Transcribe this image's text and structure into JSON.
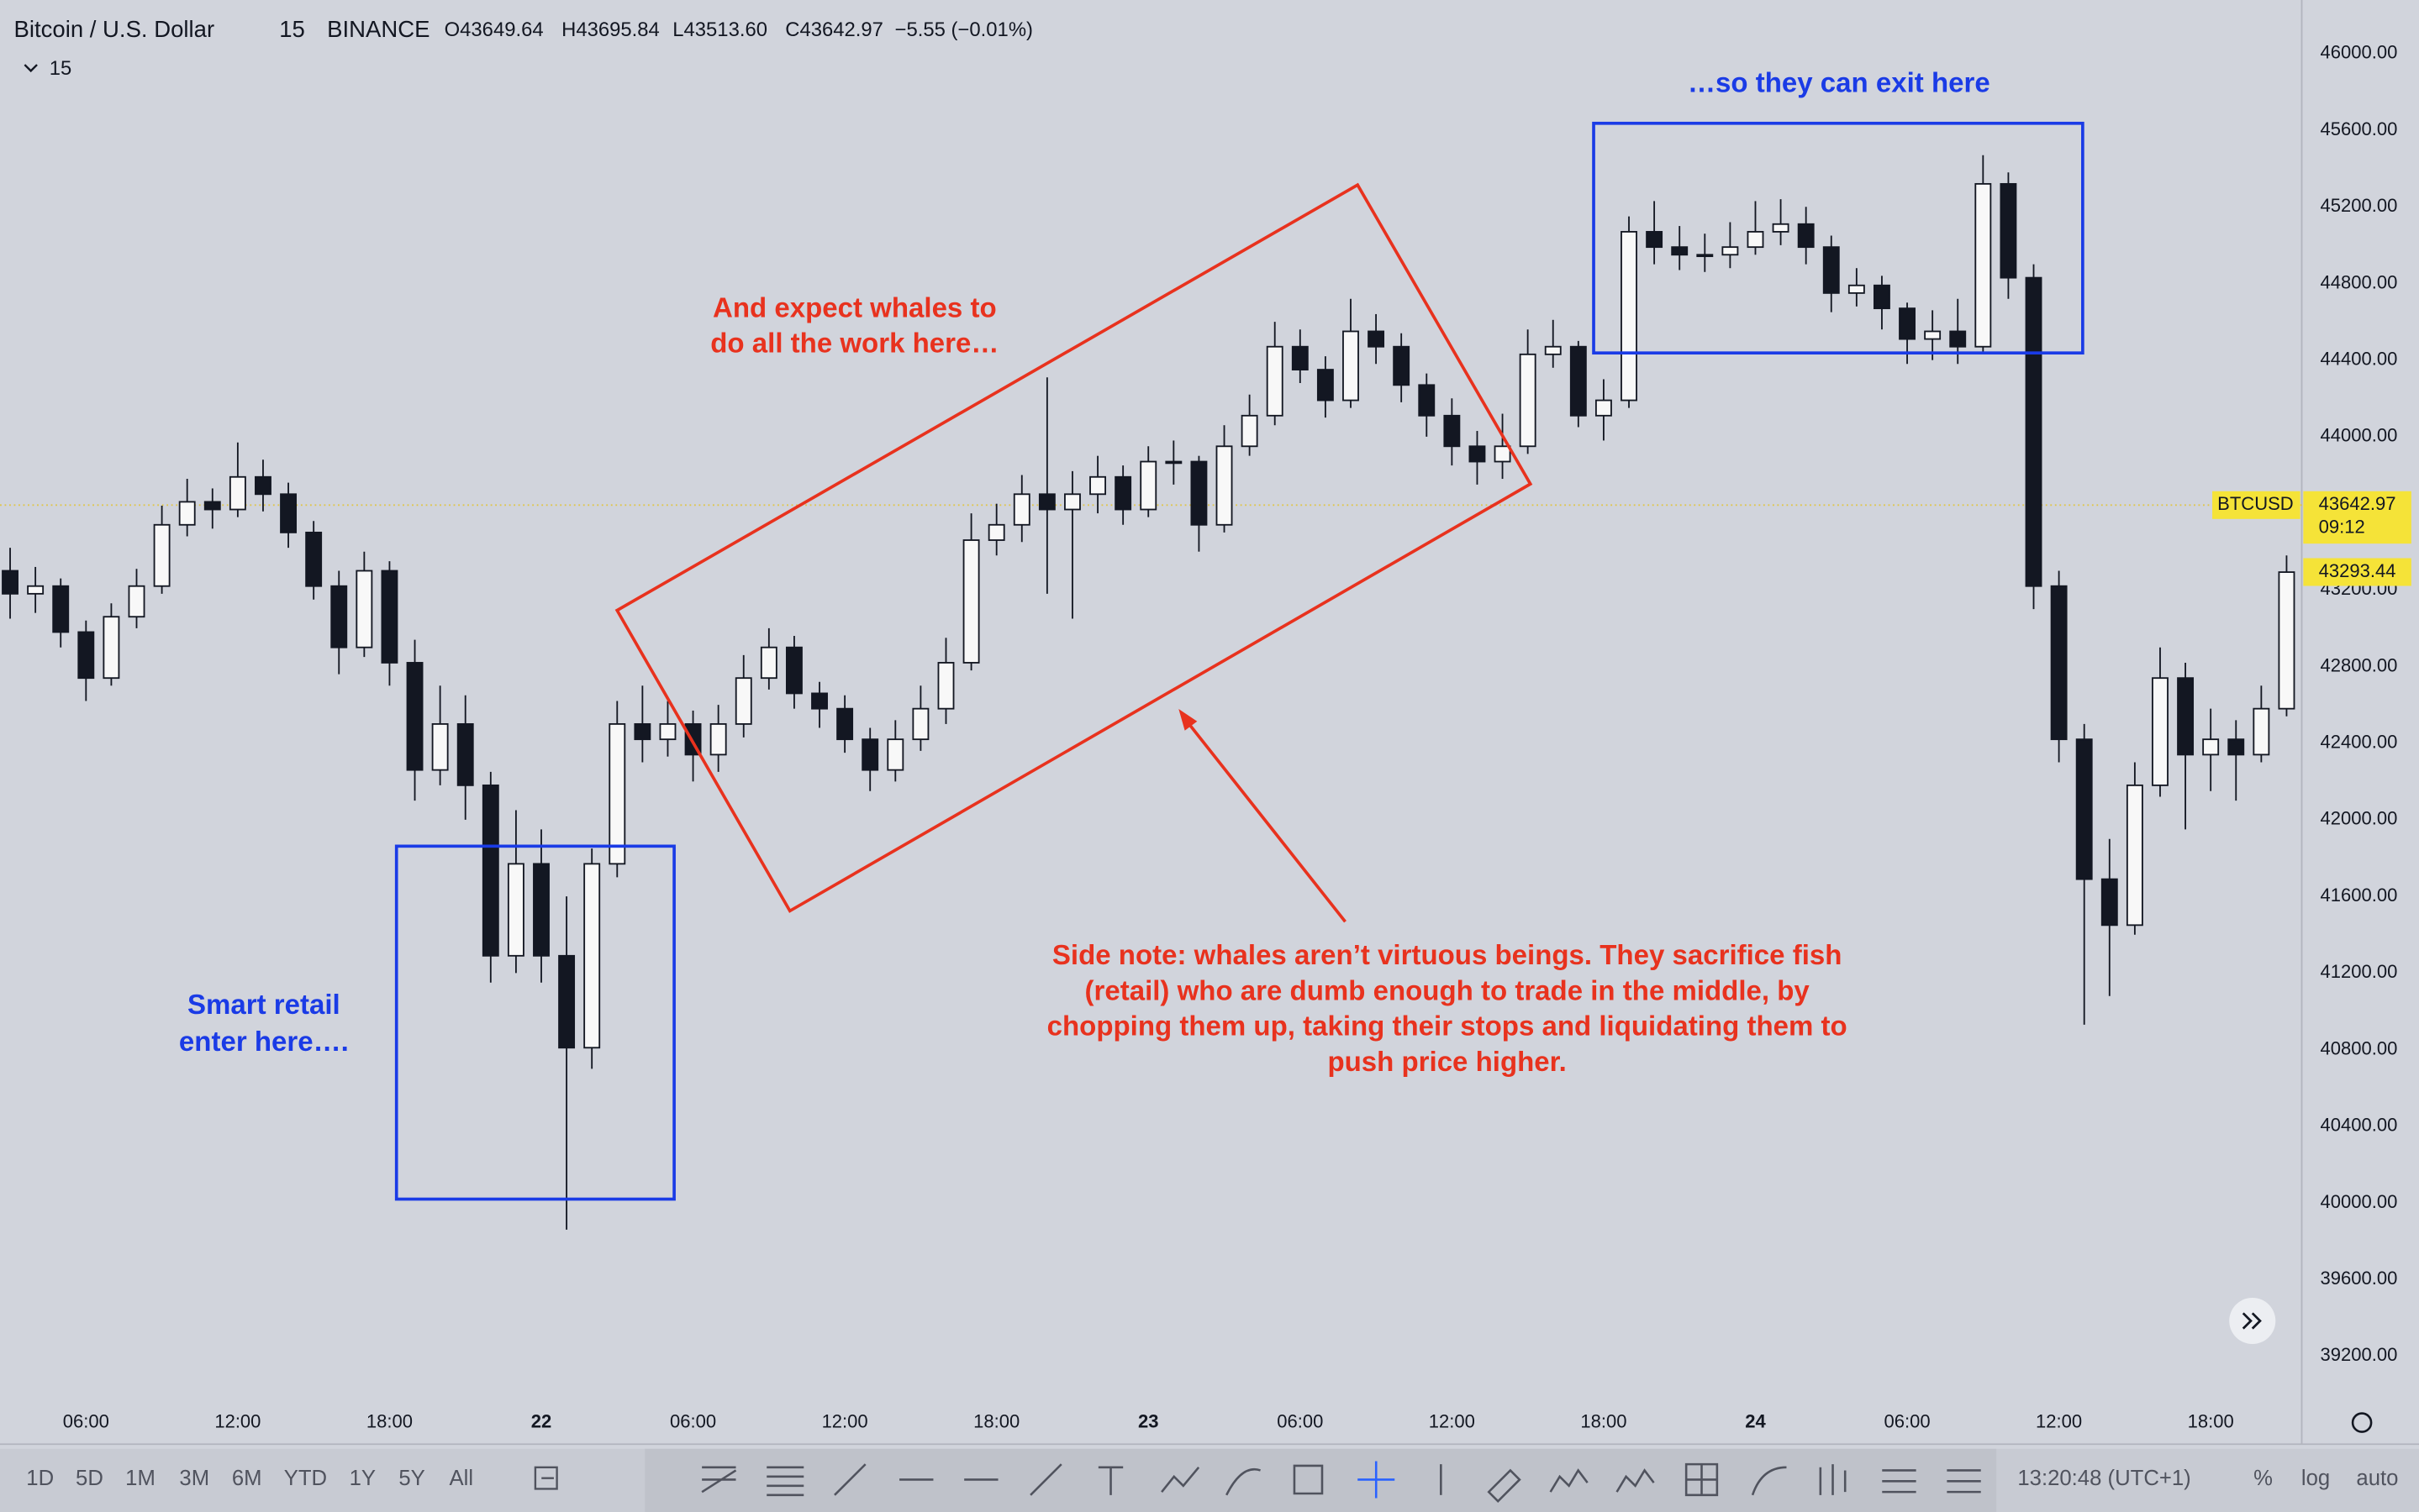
{
  "header": {
    "symbol": "Bitcoin / U.S. Dollar",
    "interval": "15",
    "exchange": "BINANCE",
    "open": "O43649.64",
    "high": "H43695.84",
    "low": "L43513.60",
    "close": "C43642.97",
    "change": "−5.55 (−0.01%)",
    "interval_menu": "15"
  },
  "chart_data": {
    "type": "candlestick",
    "xlim": [
      2.6,
      93.6
    ],
    "ylim": [
      38740,
      46280
    ],
    "xticks": [
      {
        "value": 6,
        "label": "06:00"
      },
      {
        "value": 12,
        "label": "12:00"
      },
      {
        "value": 18,
        "label": "18:00"
      },
      {
        "value": 24,
        "label": "22"
      },
      {
        "value": 30,
        "label": "06:00"
      },
      {
        "value": 36,
        "label": "12:00"
      },
      {
        "value": 42,
        "label": "18:00"
      },
      {
        "value": 48,
        "label": "23"
      },
      {
        "value": 54,
        "label": "06:00"
      },
      {
        "value": 60,
        "label": "12:00"
      },
      {
        "value": 66,
        "label": "18:00"
      },
      {
        "value": 72,
        "label": "24"
      },
      {
        "value": 78,
        "label": "06:00"
      },
      {
        "value": 84,
        "label": "12:00"
      },
      {
        "value": 90,
        "label": "18:00"
      }
    ],
    "yticks": [
      {
        "value": 39200,
        "label": "39200.00"
      },
      {
        "value": 39600,
        "label": "39600.00"
      },
      {
        "value": 40000,
        "label": "40000.00"
      },
      {
        "value": 40400,
        "label": "40400.00"
      },
      {
        "value": 40800,
        "label": "40800.00"
      },
      {
        "value": 41200,
        "label": "41200.00"
      },
      {
        "value": 41600,
        "label": "41600.00"
      },
      {
        "value": 42000,
        "label": "42000.00"
      },
      {
        "value": 42400,
        "label": "42400.00"
      },
      {
        "value": 42800,
        "label": "42800.00"
      },
      {
        "value": 43200,
        "label": "43200.00"
      },
      {
        "value": 43600,
        "label": "43600.00"
      },
      {
        "value": 44000,
        "label": "44000.00"
      },
      {
        "value": 44400,
        "label": "44400.00"
      },
      {
        "value": 44800,
        "label": "44800.00"
      },
      {
        "value": 45200,
        "label": "45200.00"
      },
      {
        "value": 45600,
        "label": "45600.00"
      },
      {
        "value": 46000,
        "label": "46000.00"
      }
    ],
    "color": "#131722",
    "series": [
      {
        "name": "BTCUSD",
        "x": [
          3,
          4,
          5,
          6,
          7,
          8,
          9,
          10,
          11,
          12,
          13,
          14,
          15,
          16,
          17,
          18,
          19,
          20,
          21,
          22,
          23,
          24,
          25,
          26,
          27,
          28,
          29,
          30,
          31,
          32,
          33,
          34,
          35,
          36,
          37,
          38,
          39,
          40,
          41,
          42,
          43,
          44,
          45,
          46,
          47,
          48,
          49,
          50,
          51,
          52,
          53,
          54,
          55,
          56,
          57,
          58,
          59,
          60,
          61,
          62,
          63,
          64,
          65,
          66,
          67,
          68,
          69,
          70,
          71,
          72,
          73,
          74,
          75,
          76,
          77,
          78,
          79,
          80,
          81,
          82,
          83,
          84,
          85,
          86,
          87,
          88,
          89,
          90,
          91,
          92,
          93
        ],
        "open": [
          43300,
          43180,
          43220,
          42980,
          42740,
          43060,
          43220,
          43540,
          43660,
          43620,
          43790,
          43700,
          43500,
          43220,
          42900,
          43300,
          42820,
          42260,
          42500,
          42180,
          41290,
          41770,
          41290,
          40810,
          41770,
          42500,
          42420,
          42500,
          42340,
          42500,
          42740,
          42900,
          42660,
          42580,
          42420,
          42260,
          42420,
          42580,
          42820,
          43460,
          43540,
          43700,
          43620,
          43700,
          43790,
          43620,
          43870,
          43870,
          43540,
          43950,
          44110,
          44470,
          44350,
          44190,
          44550,
          44470,
          44270,
          44110,
          43950,
          43870,
          43950,
          44430,
          44470,
          44110,
          44190,
          45070,
          44990,
          44950,
          44950,
          44990,
          45070,
          45110,
          44990,
          44750,
          44790,
          44670,
          44510,
          44550,
          44470,
          45320,
          44830,
          43220,
          42420,
          41690,
          41450,
          42180,
          42740,
          42340,
          42420,
          42340,
          42580
        ],
        "high": [
          43420,
          43320,
          43260,
          43040,
          43130,
          43310,
          43640,
          43780,
          43730,
          43970,
          43880,
          43760,
          43560,
          43300,
          43400,
          43350,
          42940,
          42700,
          42650,
          42250,
          42050,
          41950,
          41600,
          41850,
          42620,
          42700,
          42620,
          42570,
          42600,
          42860,
          43000,
          42960,
          42720,
          42650,
          42480,
          42520,
          42700,
          42950,
          43600,
          43650,
          43800,
          44310,
          43820,
          43900,
          43850,
          43950,
          43980,
          43900,
          44060,
          44220,
          44600,
          44560,
          44420,
          44720,
          44640,
          44540,
          44330,
          44200,
          44030,
          44120,
          44560,
          44610,
          44500,
          44300,
          45150,
          45230,
          45100,
          45060,
          45120,
          45230,
          45240,
          45200,
          45050,
          44880,
          44840,
          44700,
          44660,
          44720,
          45470,
          45380,
          44900,
          43300,
          42500,
          41900,
          42300,
          42900,
          42820,
          42580,
          42520,
          42700,
          43380
        ],
        "low": [
          43050,
          43080,
          42900,
          42620,
          42700,
          43000,
          43180,
          43480,
          43520,
          43580,
          43610,
          43420,
          43150,
          42760,
          42850,
          42700,
          42100,
          42180,
          42000,
          41150,
          41200,
          41150,
          39860,
          40700,
          41700,
          42300,
          42330,
          42200,
          42250,
          42430,
          42680,
          42580,
          42480,
          42350,
          42150,
          42200,
          42360,
          42500,
          42780,
          43380,
          43450,
          43180,
          43050,
          43600,
          43540,
          43580,
          43750,
          43400,
          43500,
          43900,
          44060,
          44280,
          44100,
          44150,
          44380,
          44180,
          44000,
          43850,
          43750,
          43780,
          43910,
          44360,
          44050,
          43980,
          44150,
          44900,
          44870,
          44860,
          44880,
          44950,
          45000,
          44900,
          44650,
          44680,
          44560,
          44380,
          44400,
          44380,
          44430,
          44720,
          43100,
          42300,
          40930,
          41080,
          41400,
          42120,
          41950,
          42150,
          42100,
          42300,
          42540
        ],
        "close": [
          43180,
          43220,
          42980,
          42740,
          43060,
          43220,
          43540,
          43660,
          43620,
          43790,
          43700,
          43500,
          43220,
          42900,
          43300,
          42820,
          42260,
          42500,
          42180,
          41290,
          41770,
          41290,
          40810,
          41770,
          42500,
          42420,
          42500,
          42340,
          42500,
          42740,
          42900,
          42660,
          42580,
          42420,
          42260,
          42420,
          42580,
          42820,
          43460,
          43540,
          43700,
          43620,
          43700,
          43790,
          43620,
          43870,
          43870,
          43540,
          43950,
          44110,
          44470,
          44350,
          44190,
          44550,
          44470,
          44270,
          44110,
          43950,
          43870,
          43950,
          44430,
          44470,
          44110,
          44190,
          45070,
          44990,
          44950,
          44950,
          44990,
          45070,
          45110,
          44990,
          44750,
          44790,
          44670,
          44510,
          44550,
          44470,
          45320,
          44830,
          43220,
          42420,
          41690,
          41450,
          42180,
          42740,
          42340,
          42420,
          42340,
          42580,
          43293
        ]
      }
    ],
    "price_line": {
      "value": 43642.97,
      "label": "43642.97",
      "countdown": "09:12",
      "color": "#e0c54a"
    },
    "last_tag": {
      "value": 43293.44,
      "label": "43293.44"
    },
    "annotations": {
      "exit": "…so they can exit here",
      "whales": [
        "And expect whales to",
        "do all the work here…"
      ],
      "retail": [
        "Smart retail",
        "enter here…."
      ],
      "note": [
        "Side note: whales aren’t virtuous beings. They sacrifice fish",
        "(retail) who are dumb enough to trade in the middle, by",
        "chopping them up, taking their stops and liquidating them to",
        "push price higher."
      ]
    }
  },
  "toolbar": {
    "ranges": [
      "1D",
      "5D",
      "1M",
      "3M",
      "6M",
      "YTD",
      "1Y",
      "5Y",
      "All"
    ],
    "clock": "13:20:48 (UTC+1)",
    "percent": "%",
    "log": "log",
    "auto": "auto"
  }
}
